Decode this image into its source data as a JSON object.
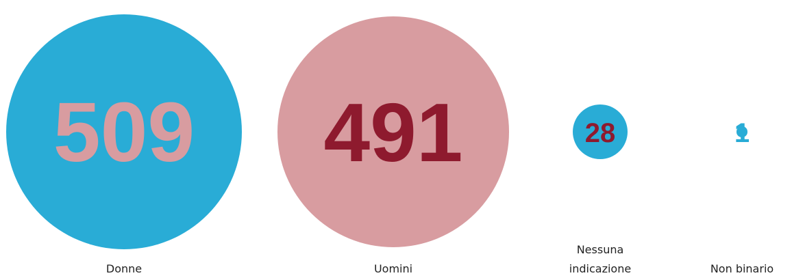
{
  "chart_data": {
    "type": "bubble",
    "categories": [
      "Donne",
      "Uomini",
      "Nessuna indicazione",
      "Non binario"
    ],
    "values": [
      509,
      491,
      28,
      1
    ],
    "colors": [
      "#29acd6",
      "#d89ca0",
      "#29acd6",
      "#29acd6"
    ],
    "label_colors": [
      "#d89ca0",
      "#8e1a2e",
      "#8e1a2e",
      "#29acd6"
    ]
  }
}
